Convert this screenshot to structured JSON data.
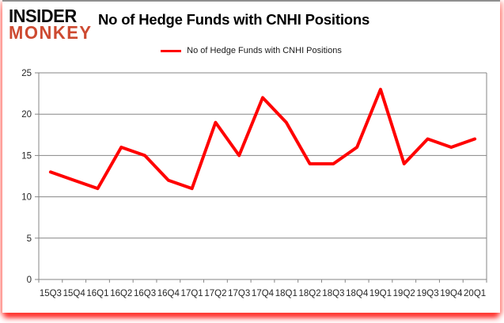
{
  "logo": {
    "line1": "INSIDER",
    "line2": "MONKEY"
  },
  "title": "No of Hedge Funds with CNHI Positions",
  "legend": {
    "label": "No of Hedge Funds with CNHI Positions"
  },
  "colors": {
    "series_line": "#ff0000",
    "gridline": "#868686",
    "axis": "#868686",
    "tick_label": "#262626",
    "logo_primary": "#0d0d0d",
    "logo_accent": "#cd4a31",
    "frame_glow": "#ff0000",
    "background": "#ffffff"
  },
  "chart_data": {
    "type": "line",
    "title": "No of Hedge Funds with CNHI Positions",
    "categories": [
      "15Q3",
      "15Q4",
      "16Q1",
      "16Q2",
      "16Q3",
      "16Q4",
      "17Q1",
      "17Q2",
      "17Q3",
      "17Q4",
      "18Q1",
      "18Q2",
      "18Q3",
      "18Q4",
      "19Q1",
      "19Q2",
      "19Q3",
      "19Q4",
      "20Q1"
    ],
    "series": [
      {
        "name": "No of Hedge Funds with CNHI Positions",
        "color": "#ff0000",
        "values": [
          13,
          12,
          11,
          16,
          15,
          12,
          11,
          19,
          15,
          22,
          19,
          14,
          14,
          16,
          23,
          14,
          17,
          16,
          17
        ]
      }
    ],
    "xlabel": "",
    "ylabel": "",
    "ylim": [
      0,
      25
    ],
    "yticks": [
      0,
      5,
      10,
      15,
      20,
      25
    ],
    "grid": true,
    "legend_position": "top-center"
  }
}
